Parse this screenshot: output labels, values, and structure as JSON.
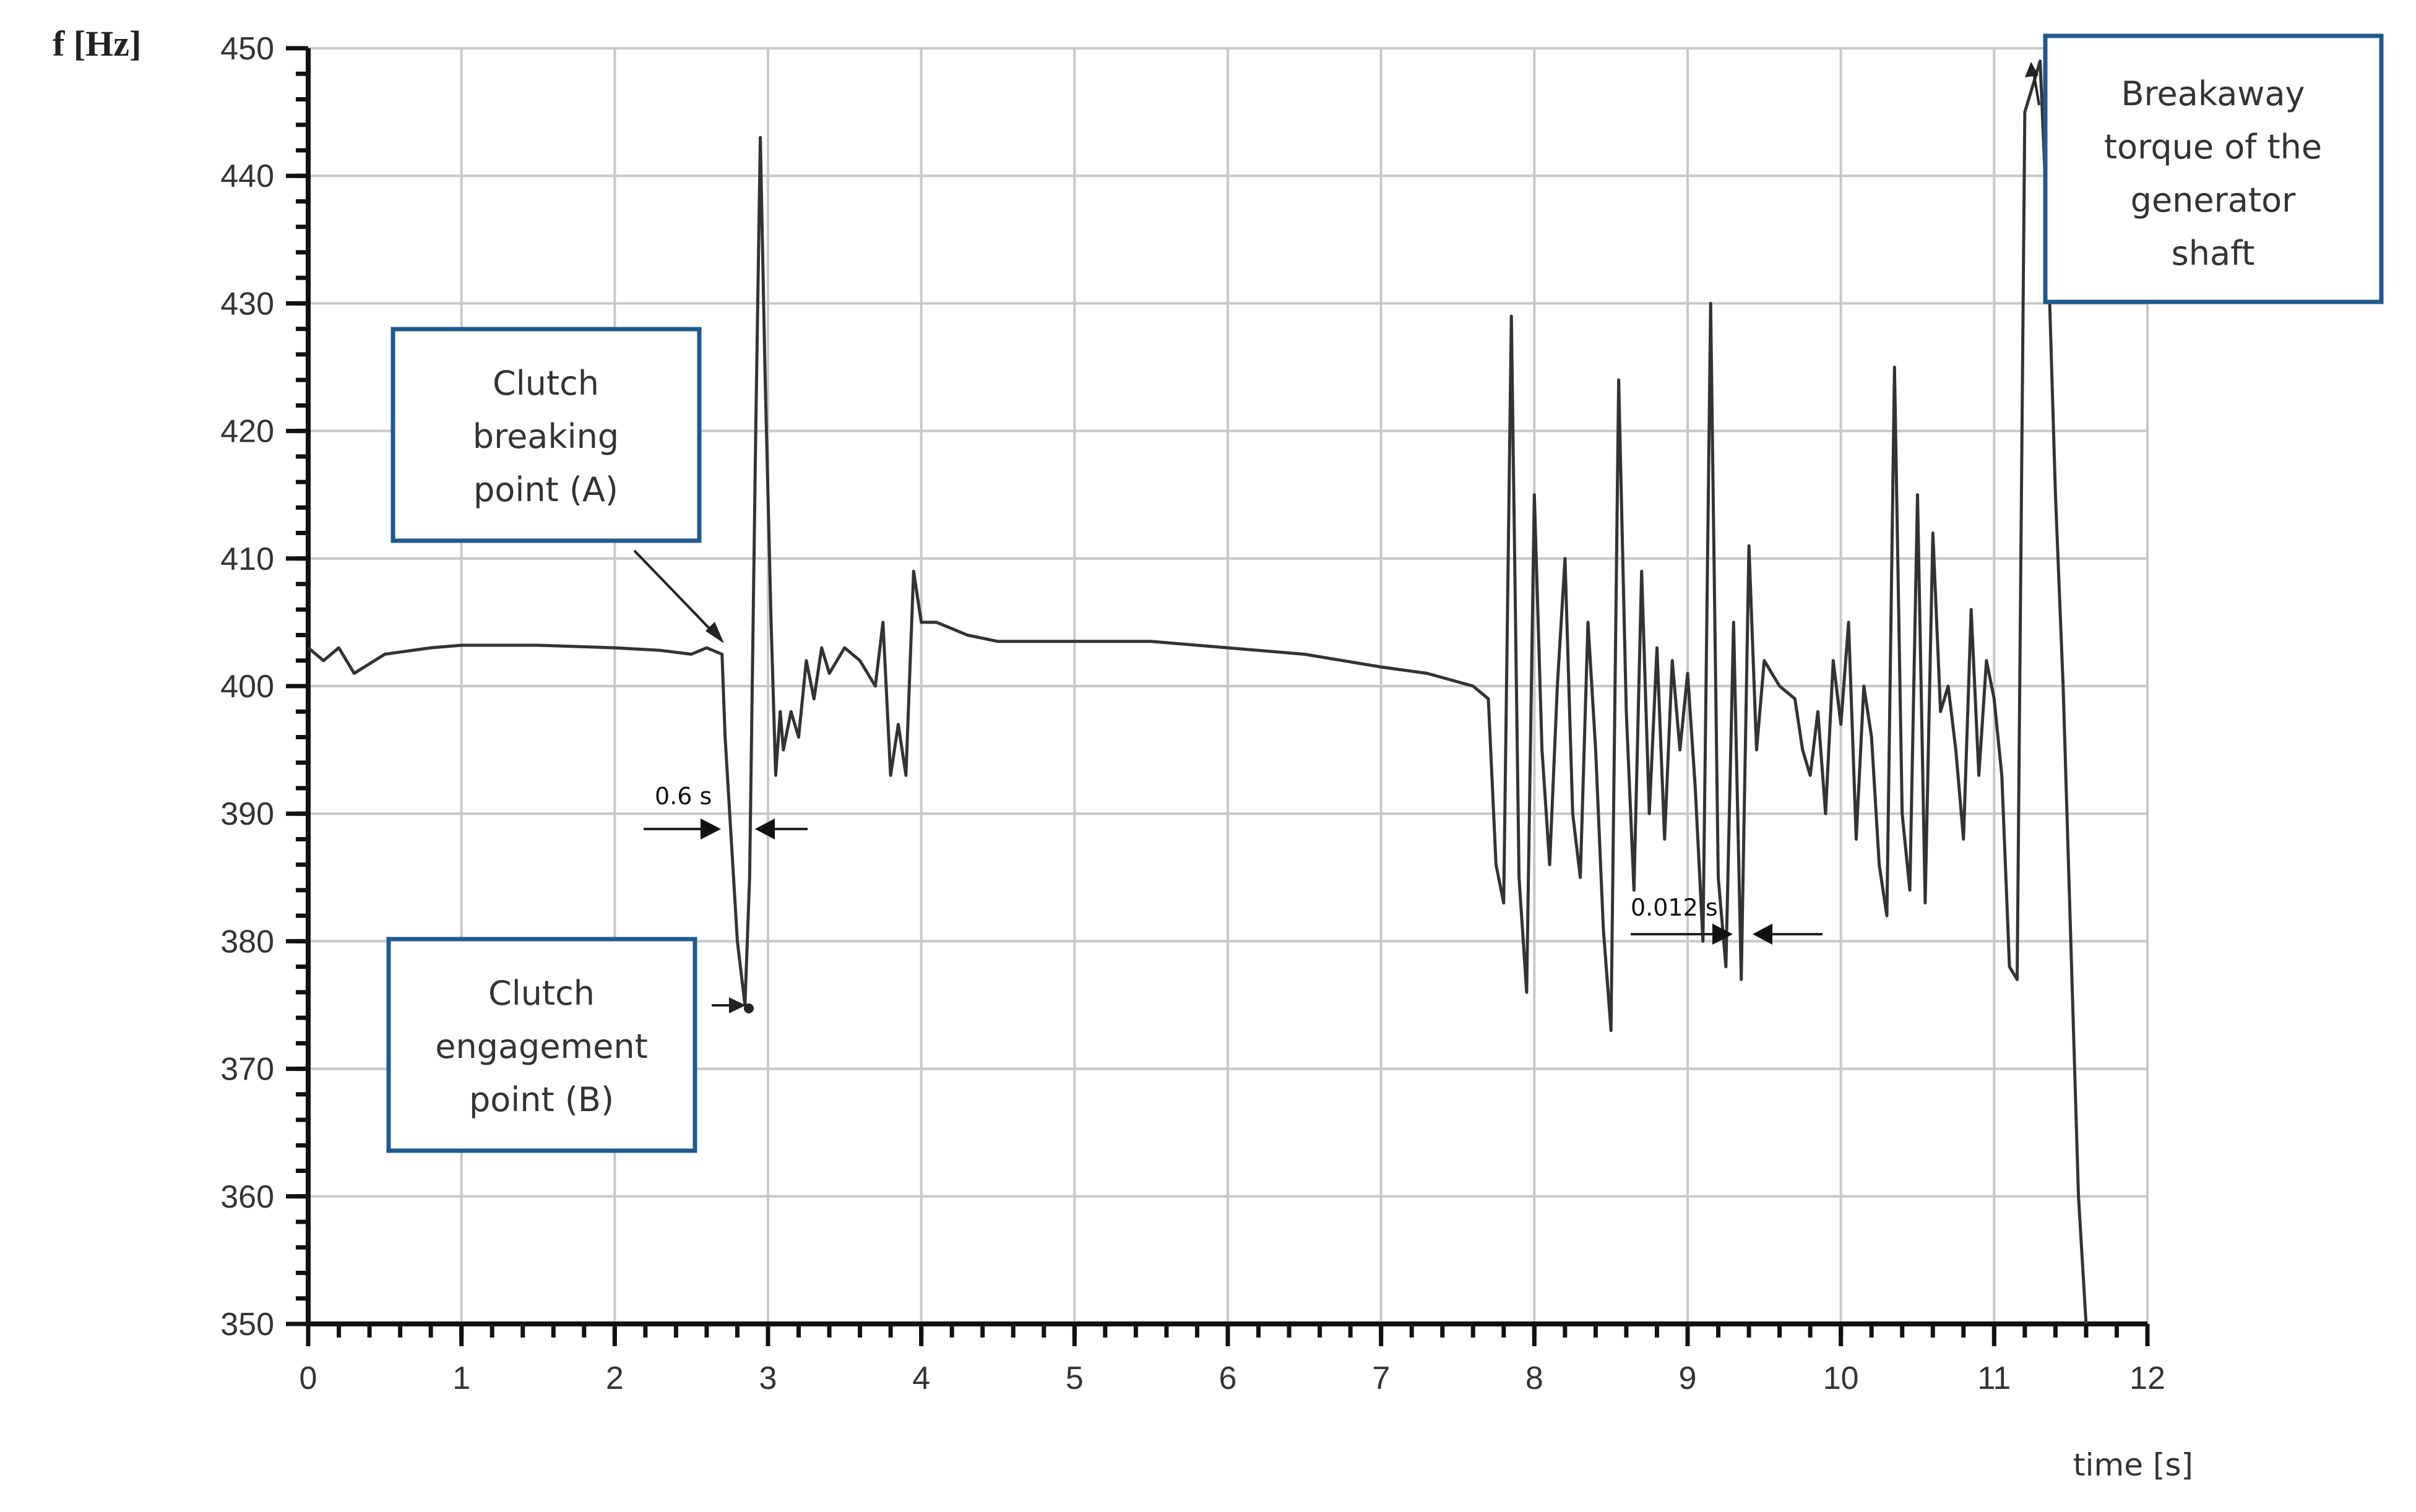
{
  "chart_data": {
    "type": "line",
    "ylabel": "f [Hz]",
    "xlabel": "time [s]",
    "xlim": [
      0,
      12
    ],
    "ylim": [
      350,
      450
    ],
    "x_ticks": [
      "0",
      "1",
      "2",
      "3",
      "4",
      "5",
      "6",
      "7",
      "8",
      "9",
      "10",
      "11",
      "12"
    ],
    "y_ticks": [
      "350",
      "360",
      "370",
      "380",
      "390",
      "400",
      "410",
      "420",
      "430",
      "440",
      "450"
    ],
    "grid": true,
    "series": [
      {
        "points": [
          [
            0.0,
            403
          ],
          [
            0.1,
            402
          ],
          [
            0.2,
            403
          ],
          [
            0.3,
            401
          ],
          [
            0.5,
            402.5
          ],
          [
            0.8,
            403
          ],
          [
            1.0,
            403.2
          ],
          [
            1.5,
            403.2
          ],
          [
            2.0,
            403
          ],
          [
            2.3,
            402.8
          ],
          [
            2.5,
            402.5
          ],
          [
            2.6,
            403
          ],
          [
            2.7,
            402.5
          ],
          [
            2.72,
            396
          ],
          [
            2.76,
            388
          ],
          [
            2.8,
            380
          ],
          [
            2.85,
            375
          ],
          [
            2.88,
            385
          ],
          [
            2.92,
            420
          ],
          [
            2.95,
            443
          ],
          [
            2.98,
            425
          ],
          [
            3.02,
            405
          ],
          [
            3.05,
            393
          ],
          [
            3.08,
            398
          ],
          [
            3.1,
            395
          ],
          [
            3.15,
            398
          ],
          [
            3.2,
            396
          ],
          [
            3.25,
            402
          ],
          [
            3.3,
            399
          ],
          [
            3.35,
            403
          ],
          [
            3.4,
            401
          ],
          [
            3.5,
            403
          ],
          [
            3.6,
            402
          ],
          [
            3.7,
            400
          ],
          [
            3.75,
            405
          ],
          [
            3.8,
            393
          ],
          [
            3.85,
            397
          ],
          [
            3.9,
            393
          ],
          [
            3.95,
            409
          ],
          [
            4.0,
            405
          ],
          [
            4.1,
            405
          ],
          [
            4.3,
            404
          ],
          [
            4.5,
            403.5
          ],
          [
            5.0,
            403.5
          ],
          [
            5.5,
            403.5
          ],
          [
            6.0,
            403
          ],
          [
            6.5,
            402.5
          ],
          [
            7.0,
            401.5
          ],
          [
            7.3,
            401
          ],
          [
            7.6,
            400
          ],
          [
            7.7,
            399
          ],
          [
            7.75,
            386
          ],
          [
            7.8,
            383
          ],
          [
            7.85,
            429
          ],
          [
            7.9,
            385
          ],
          [
            7.95,
            376
          ],
          [
            8.0,
            415
          ],
          [
            8.05,
            395
          ],
          [
            8.1,
            386
          ],
          [
            8.15,
            400
          ],
          [
            8.2,
            410
          ],
          [
            8.25,
            390
          ],
          [
            8.3,
            385
          ],
          [
            8.35,
            405
          ],
          [
            8.4,
            395
          ],
          [
            8.45,
            381
          ],
          [
            8.5,
            373
          ],
          [
            8.55,
            424
          ],
          [
            8.6,
            398
          ],
          [
            8.65,
            384
          ],
          [
            8.7,
            409
          ],
          [
            8.75,
            390
          ],
          [
            8.8,
            403
          ],
          [
            8.85,
            388
          ],
          [
            8.9,
            402
          ],
          [
            8.95,
            395
          ],
          [
            9.0,
            401
          ],
          [
            9.05,
            392
          ],
          [
            9.1,
            380
          ],
          [
            9.15,
            430
          ],
          [
            9.2,
            385
          ],
          [
            9.25,
            378
          ],
          [
            9.3,
            405
          ],
          [
            9.35,
            377
          ],
          [
            9.4,
            411
          ],
          [
            9.45,
            395
          ],
          [
            9.5,
            402
          ],
          [
            9.6,
            400
          ],
          [
            9.7,
            399
          ],
          [
            9.75,
            395
          ],
          [
            9.8,
            393
          ],
          [
            9.85,
            398
          ],
          [
            9.9,
            390
          ],
          [
            9.95,
            402
          ],
          [
            10.0,
            397
          ],
          [
            10.05,
            405
          ],
          [
            10.1,
            388
          ],
          [
            10.15,
            400
          ],
          [
            10.2,
            396
          ],
          [
            10.25,
            386
          ],
          [
            10.3,
            382
          ],
          [
            10.35,
            425
          ],
          [
            10.4,
            390
          ],
          [
            10.45,
            384
          ],
          [
            10.5,
            415
          ],
          [
            10.55,
            383
          ],
          [
            10.6,
            412
          ],
          [
            10.65,
            398
          ],
          [
            10.7,
            400
          ],
          [
            10.75,
            395
          ],
          [
            10.8,
            388
          ],
          [
            10.85,
            406
          ],
          [
            10.9,
            393
          ],
          [
            10.95,
            402
          ],
          [
            11.0,
            399
          ],
          [
            11.05,
            393
          ],
          [
            11.1,
            378
          ],
          [
            11.15,
            377
          ],
          [
            11.2,
            445
          ],
          [
            11.25,
            447
          ],
          [
            11.3,
            449
          ],
          [
            11.35,
            435
          ],
          [
            11.4,
            415
          ],
          [
            11.45,
            400
          ],
          [
            11.5,
            380
          ],
          [
            11.55,
            360
          ],
          [
            11.6,
            350
          ]
        ]
      }
    ],
    "annotations": [
      {
        "text": [
          "Clutch",
          "breaking",
          "point (A)"
        ],
        "target_x": 2.7,
        "target_y": 403
      },
      {
        "text": [
          "Clutch",
          "engagement",
          "point (B)"
        ],
        "target_x": 2.88,
        "target_y": 374.8
      },
      {
        "text": [
          "Breakaway",
          "torque of the",
          "generator",
          "shaft"
        ],
        "target_x": 11.3,
        "target_y": 449
      },
      {
        "text": [
          "0.6 s"
        ]
      },
      {
        "text": [
          "0.012 s"
        ]
      }
    ]
  },
  "colors": {
    "line": "#333333",
    "grid": "#c8c8c8",
    "axis": "#111111",
    "callout_border": "#1f5a8c"
  }
}
